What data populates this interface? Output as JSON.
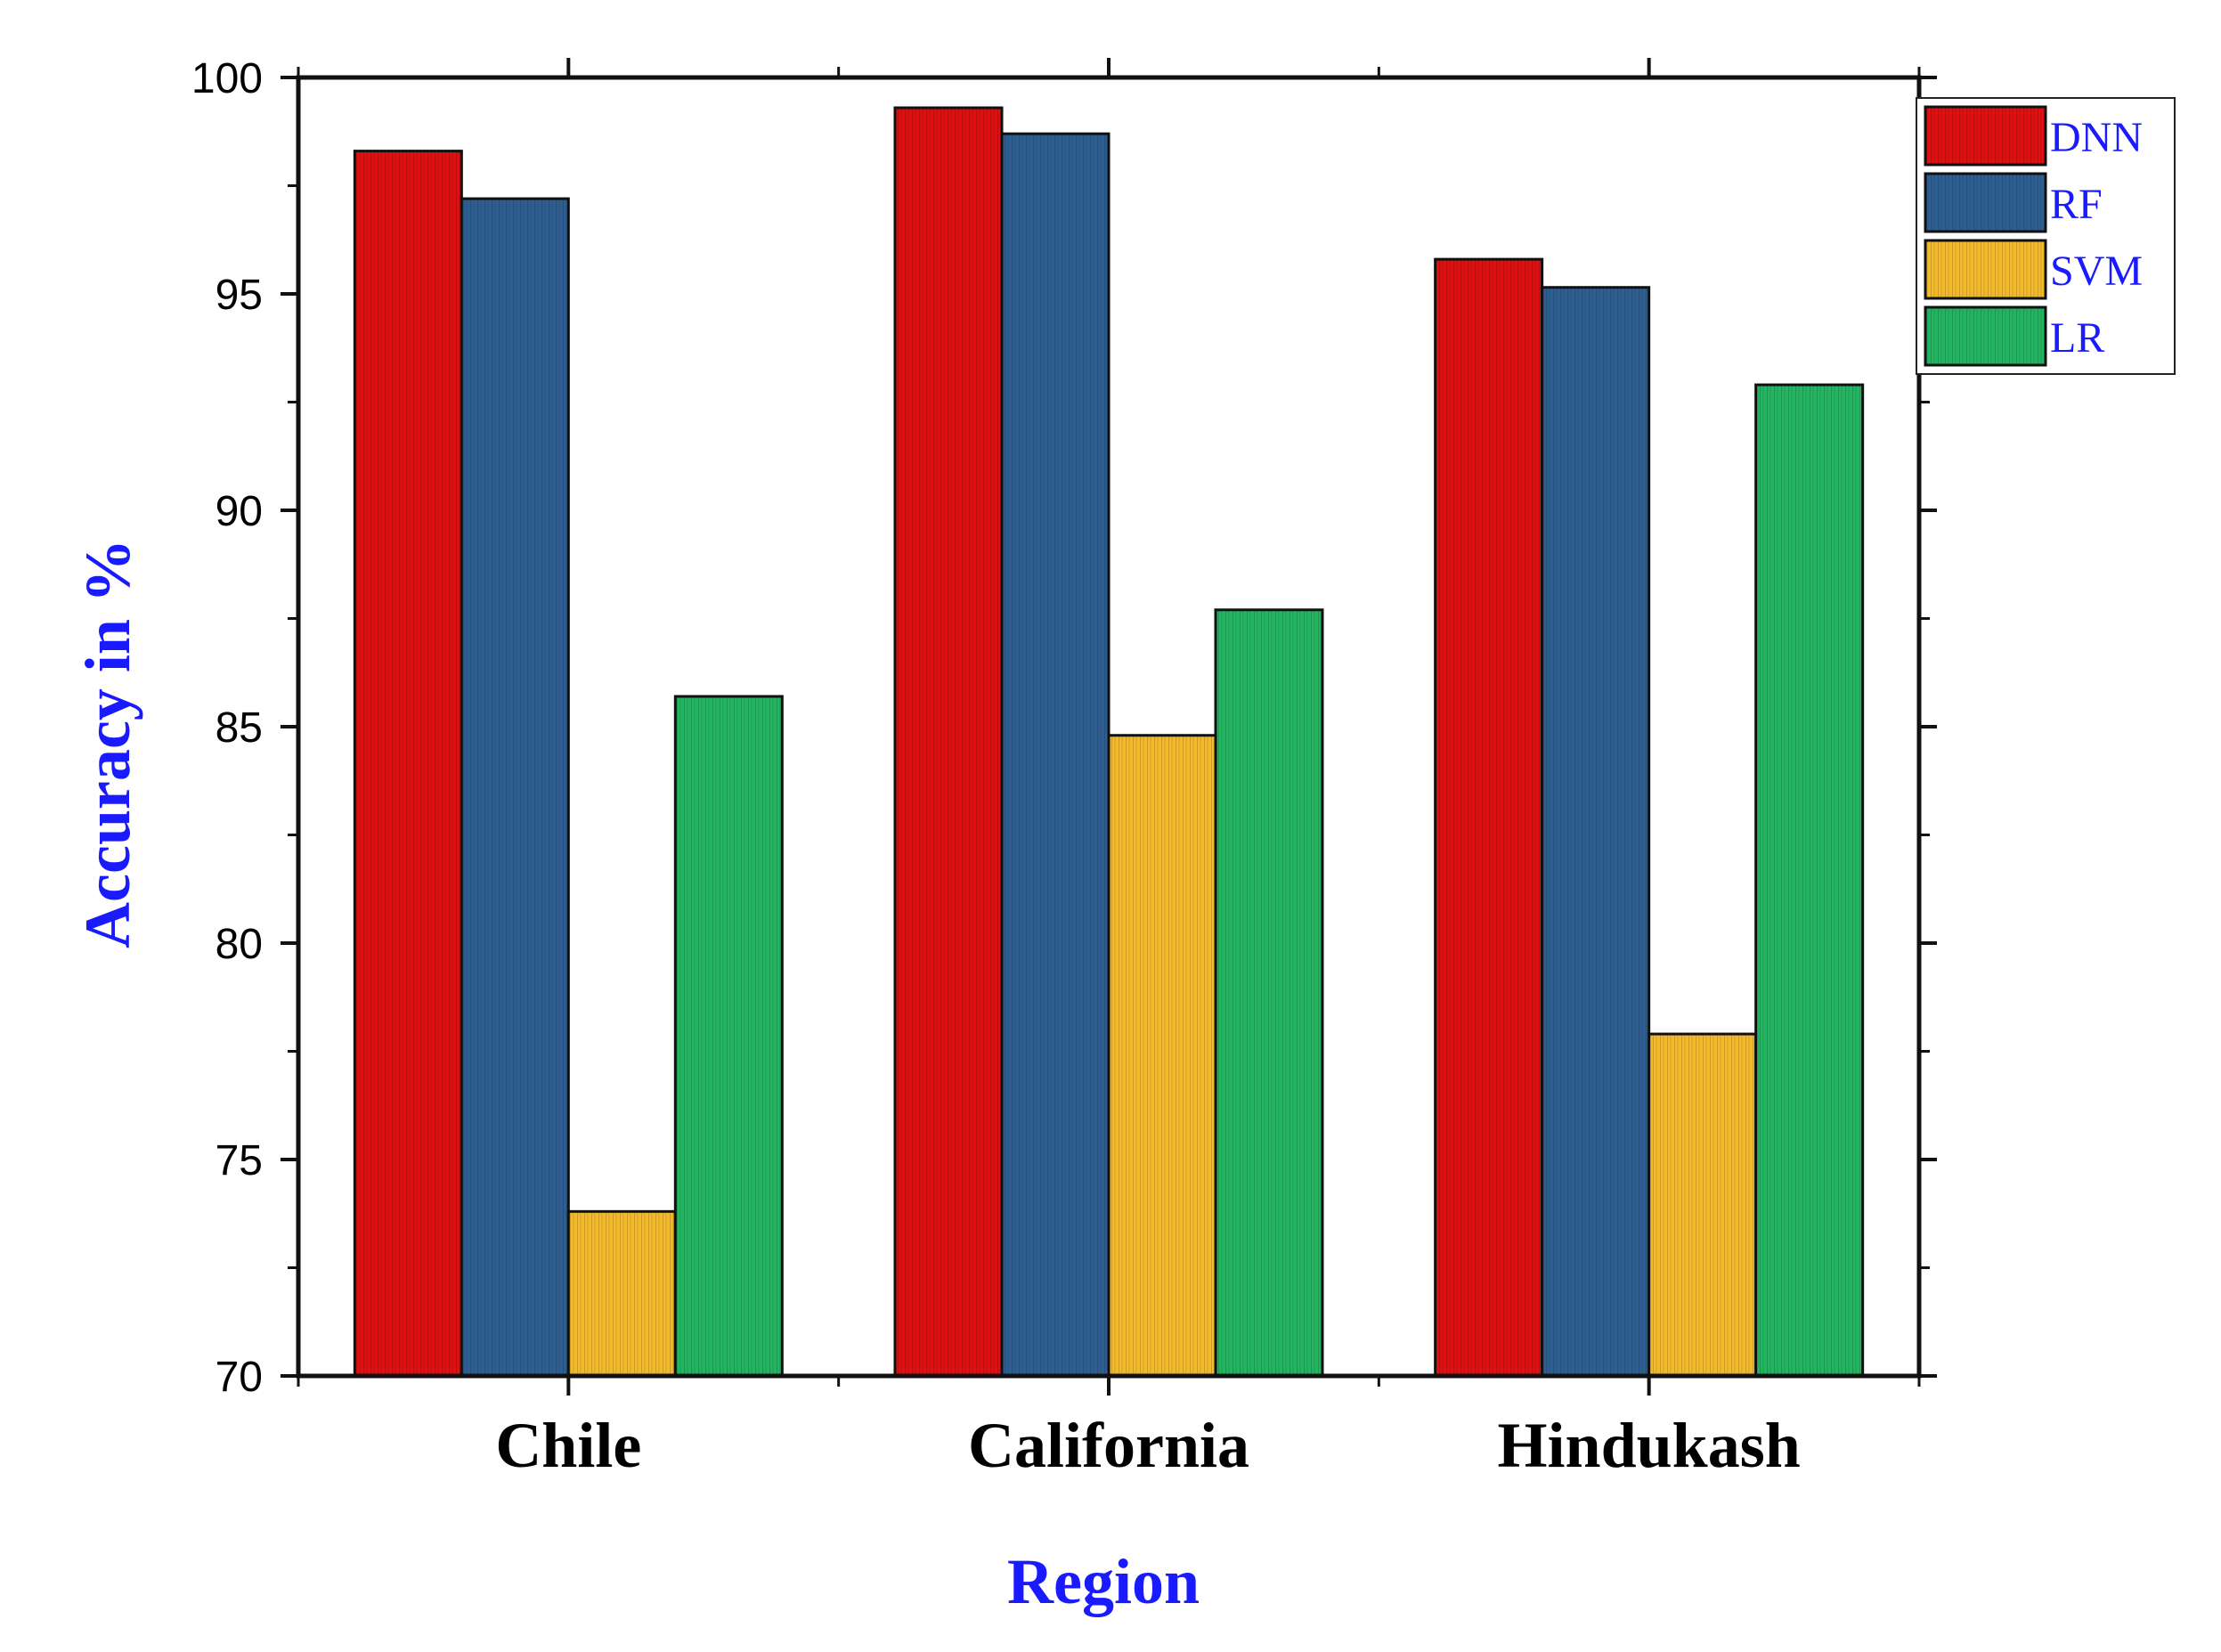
{
  "chart_data": {
    "type": "bar",
    "title": "",
    "xlabel": "Region",
    "ylabel": "Accuracy in %",
    "categories": [
      "Chile",
      "California",
      "Hindukash"
    ],
    "series": [
      {
        "name": "DNN",
        "color": "#e01010",
        "values": [
          98.3,
          99.3,
          95.8
        ]
      },
      {
        "name": "RF",
        "color": "#2e5f93",
        "values": [
          97.2,
          98.7,
          95.15
        ]
      },
      {
        "name": "SVM",
        "color": "#f2b92b",
        "values": [
          73.8,
          84.8,
          77.9
        ]
      },
      {
        "name": "LR",
        "color": "#22b460",
        "values": [
          85.7,
          87.7,
          92.9
        ]
      }
    ],
    "ylim": [
      70,
      100
    ],
    "yticks": [
      70,
      75,
      80,
      85,
      90,
      95,
      100
    ],
    "grid": false,
    "legend": "top-right"
  }
}
